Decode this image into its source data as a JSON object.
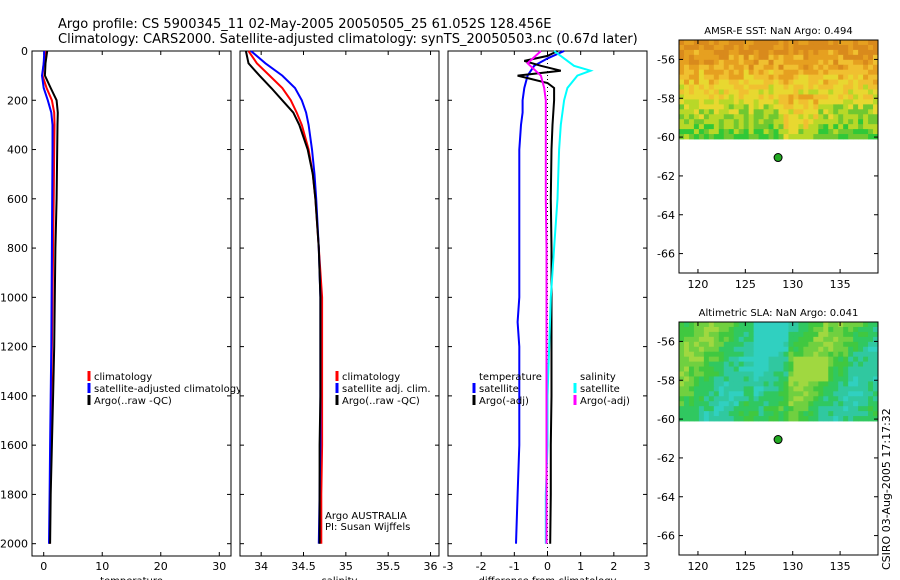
{
  "title_line1": "Argo profile: CS 5900345_11 02-May-2005 20050505_25 61.052S 128.456E",
  "title_line2": "Climatology: CARS2000. Satellite-adjusted climatology: synTS_20050503.nc (0.67d later)",
  "side_stamp": "CSIRO 03-Aug-2005 17:17:32",
  "colors": {
    "red": "#ff0000",
    "blue": "#0000ff",
    "black": "#000000",
    "cyan": "#00ffff",
    "magenta": "#ff00ff",
    "marker": "#22aa22"
  },
  "chart_data": [
    {
      "id": "temperature",
      "type": "line",
      "xlabel": "temperature",
      "xlim": [
        -2,
        32
      ],
      "ylim": [
        2050,
        0
      ],
      "xticks": [
        0,
        10,
        20,
        30
      ],
      "yticks": [
        0,
        200,
        400,
        600,
        800,
        1000,
        1200,
        1400,
        1600,
        1800,
        2000
      ],
      "legend": [
        "climatology",
        "satellite-adjusted climatology",
        "Argo(..raw -QC)"
      ],
      "legend_colors": [
        "red",
        "blue",
        "black"
      ],
      "series": [
        {
          "name": "climatology",
          "color": "red",
          "depth": [
            0,
            50,
            100,
            150,
            200,
            250,
            300,
            400,
            600,
            800,
            1000,
            1200,
            1400,
            1600,
            1800,
            2000
          ],
          "values": [
            0.3,
            0.0,
            -0.2,
            0.5,
            1.4,
            1.8,
            1.85,
            1.8,
            1.7,
            1.6,
            1.5,
            1.4,
            1.3,
            1.2,
            1.1,
            1.0
          ]
        },
        {
          "name": "satellite-adjusted climatology",
          "color": "blue",
          "depth": [
            0,
            50,
            100,
            150,
            200,
            250,
            300,
            400,
            600,
            800,
            1000,
            1200,
            1400,
            1600,
            1800,
            2000
          ],
          "values": [
            0.1,
            0.0,
            -0.3,
            0.0,
            0.7,
            1.3,
            1.5,
            1.5,
            1.45,
            1.4,
            1.35,
            1.3,
            1.2,
            1.1,
            1.0,
            0.9
          ]
        },
        {
          "name": "Argo(..raw -QC)",
          "color": "black",
          "depth": [
            0,
            50,
            100,
            150,
            200,
            250,
            300,
            400,
            600,
            800,
            1000,
            1200,
            1400,
            1600,
            1800,
            2000
          ],
          "values": [
            0.6,
            0.3,
            0.2,
            1.2,
            2.2,
            2.4,
            2.35,
            2.3,
            2.2,
            2.0,
            1.9,
            1.8,
            1.6,
            1.4,
            1.2,
            1.1
          ]
        }
      ]
    },
    {
      "id": "salinity",
      "type": "line",
      "xlabel": "salinity",
      "xlim": [
        33.75,
        36.1
      ],
      "ylim": [
        2050,
        0
      ],
      "xticks": [
        34,
        34.5,
        35,
        35.5,
        36
      ],
      "legend": [
        "climatology",
        "satellite adj. clim.",
        "Argo(..raw -QC)"
      ],
      "legend_colors": [
        "red",
        "blue",
        "black"
      ],
      "annotation": [
        "Argo AUSTRALIA",
        "PI: Susan Wijffels"
      ],
      "series": [
        {
          "name": "climatology",
          "color": "red",
          "depth": [
            0,
            50,
            100,
            150,
            200,
            250,
            300,
            400,
            500,
            600,
            800,
            1000,
            1200,
            1400,
            1600,
            1800,
            2000
          ],
          "values": [
            33.85,
            33.95,
            34.1,
            34.25,
            34.35,
            34.42,
            34.48,
            34.56,
            34.61,
            34.64,
            34.68,
            34.72,
            34.72,
            34.72,
            34.72,
            34.71,
            34.71
          ]
        },
        {
          "name": "satellite adj. clim.",
          "color": "blue",
          "depth": [
            0,
            50,
            100,
            150,
            200,
            250,
            300,
            400,
            500,
            600,
            800,
            1000,
            1200,
            1400,
            1600,
            1800,
            2000
          ],
          "values": [
            33.88,
            34.05,
            34.25,
            34.4,
            34.48,
            34.53,
            34.56,
            34.6,
            34.63,
            34.65,
            34.68,
            34.7,
            34.7,
            34.7,
            34.7,
            34.69,
            34.68
          ]
        },
        {
          "name": "Argo(..raw -QC)",
          "color": "black",
          "depth": [
            0,
            50,
            100,
            150,
            200,
            250,
            300,
            400,
            500,
            600,
            800,
            1000,
            1200,
            1400,
            1600,
            1800,
            2000
          ],
          "values": [
            33.82,
            33.85,
            33.98,
            34.12,
            34.25,
            34.38,
            34.45,
            34.55,
            34.61,
            34.64,
            34.68,
            34.7,
            34.7,
            34.7,
            34.69,
            34.69,
            34.69
          ]
        }
      ]
    },
    {
      "id": "difference",
      "type": "line",
      "xlabel": "difference from climatology",
      "xlim": [
        -3,
        3
      ],
      "ylim": [
        2050,
        0
      ],
      "xticks": [
        -3,
        -2,
        -1,
        0,
        1,
        2,
        3
      ],
      "legend_left_title": "temperature",
      "legend_left": [
        "satellite",
        "Argo(-adj)"
      ],
      "legend_left_colors": [
        "blue",
        "black"
      ],
      "legend_right_title": "salinity",
      "legend_right": [
        "satellite",
        "Argo(-adj)"
      ],
      "legend_right_colors": [
        "cyan",
        "magenta"
      ],
      "series": [
        {
          "name": "temperature satellite",
          "color": "blue",
          "depth": [
            0,
            30,
            60,
            100,
            150,
            200,
            250,
            300,
            400,
            600,
            800,
            1000,
            1100,
            1200,
            1400,
            1600,
            1800,
            2000
          ],
          "values": [
            0.5,
            0.0,
            -0.4,
            -0.6,
            -0.7,
            -0.75,
            -0.75,
            -0.8,
            -0.85,
            -0.85,
            -0.85,
            -0.85,
            -0.9,
            -0.85,
            -0.85,
            -0.85,
            -0.9,
            -0.95
          ]
        },
        {
          "name": "temperature Argo(-adj)",
          "color": "black",
          "depth": [
            0,
            20,
            40,
            60,
            80,
            100,
            130,
            150,
            200,
            300,
            400,
            600,
            800,
            1000,
            1200,
            1400,
            1600,
            1800,
            2000
          ],
          "values": [
            0.3,
            0.0,
            -0.7,
            -0.2,
            0.4,
            -0.9,
            0.0,
            0.2,
            0.2,
            0.15,
            0.12,
            0.1,
            0.12,
            0.12,
            0.12,
            0.12,
            0.1,
            0.1,
            0.08
          ]
        },
        {
          "name": "salinity satellite",
          "color": "cyan",
          "depth": [
            0,
            30,
            60,
            80,
            100,
            150,
            200,
            300,
            400,
            600,
            800,
            1000,
            1200,
            1400,
            1600,
            1800,
            2000
          ],
          "values": [
            0.2,
            0.5,
            0.8,
            1.3,
            0.9,
            0.6,
            0.5,
            0.4,
            0.35,
            0.3,
            0.2,
            0.1,
            0.05,
            0.0,
            0.0,
            -0.05,
            -0.05
          ]
        },
        {
          "name": "salinity Argo(-adj)",
          "color": "magenta",
          "depth": [
            0,
            50,
            100,
            150,
            200,
            300,
            400,
            600,
            800,
            1000,
            1200,
            1400,
            1600,
            1800,
            2000
          ],
          "values": [
            -0.2,
            -0.6,
            -0.2,
            -0.1,
            -0.05,
            -0.05,
            -0.05,
            -0.05,
            -0.03,
            -0.03,
            -0.03,
            -0.03,
            -0.03,
            -0.03,
            -0.03
          ]
        }
      ]
    },
    {
      "id": "sst_map",
      "type": "heatmap",
      "title": "AMSR-E SST: NaN Argo: 0.494",
      "xlim": [
        118,
        139
      ],
      "ylim": [
        -67,
        -55
      ],
      "xticks": [
        120,
        125,
        130,
        135
      ],
      "yticks": [
        -56,
        -58,
        -60,
        -62,
        -64,
        -66
      ],
      "data_extent_lat": [
        -60.1,
        -55
      ],
      "palette": [
        "#d98a1c",
        "#e6a020",
        "#f0c030",
        "#e8d830",
        "#b8d828",
        "#70c830",
        "#30c838"
      ],
      "argo_point": {
        "lon": 128.456,
        "lat": -61.052
      }
    },
    {
      "id": "sla_map",
      "type": "heatmap",
      "title": "Altimetric SLA: NaN Argo: 0.041",
      "xlim": [
        118,
        139
      ],
      "ylim": [
        -67,
        -55
      ],
      "xticks": [
        120,
        125,
        130,
        135
      ],
      "yticks": [
        -56,
        -58,
        -60,
        -62,
        -64,
        -66
      ],
      "data_extent_lat": [
        -60.1,
        -55
      ],
      "palette": [
        "#30d0c0",
        "#30c8a0",
        "#30c860",
        "#40c840",
        "#70d040",
        "#a0d840"
      ],
      "argo_point": {
        "lon": 128.456,
        "lat": -61.052
      }
    }
  ]
}
